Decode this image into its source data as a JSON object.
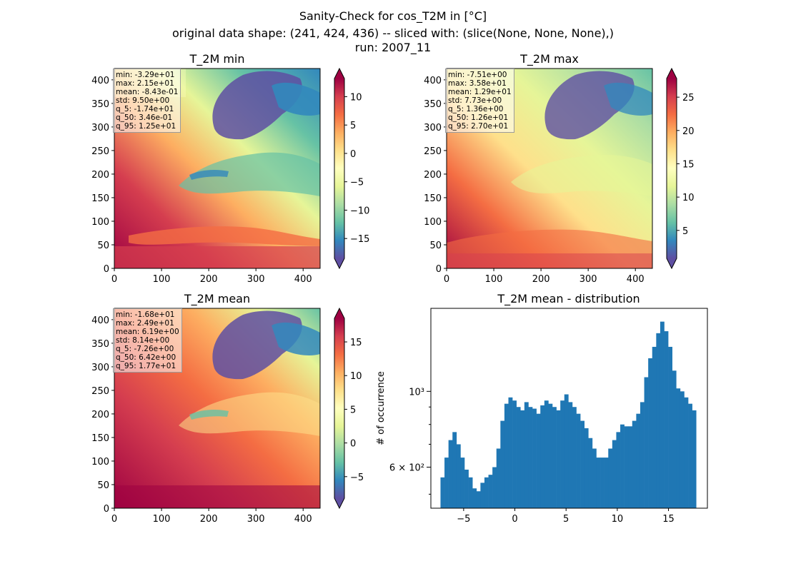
{
  "figure": {
    "title_lines": [
      "Sanity-Check for cos_T2M in [°C]",
      "original data shape: (241, 424, 436) -- sliced with: (slice(None, None, None),)",
      "run: 2007_11"
    ]
  },
  "panels": [
    {
      "id": "min",
      "title": "T_2M min",
      "stats": [
        "min: -3.29e+01",
        "max: 2.15e+01",
        "mean: -8.43e-01",
        "std: 9.50e+00",
        "q_5: -1.74e+01",
        "q_50: 3.46e-01",
        "q_95: 1.25e+01"
      ],
      "colorbar_ticks": [
        10,
        5,
        0,
        -5,
        -10,
        -15
      ],
      "tick_labels": [
        "10",
        "5",
        "0",
        "−5",
        "−10",
        "−15"
      ],
      "vmin": -18.5,
      "vmax": 13.2
    },
    {
      "id": "max",
      "title": "T_2M max",
      "stats": [
        "min: -7.51e+00",
        "max: 3.58e+01",
        "mean: 1.29e+01",
        "std: 7.73e+00",
        "q_5: 1.36e+00",
        "q_50: 1.26e+01",
        "q_95: 2.70e+01"
      ],
      "colorbar_ticks": [
        25,
        20,
        15,
        10,
        5
      ],
      "tick_labels": [
        "25",
        "20",
        "15",
        "10",
        "5"
      ],
      "vmin": 0.8,
      "vmax": 27.8
    },
    {
      "id": "mean",
      "title": "T_2M mean",
      "stats": [
        "min: -1.68e+01",
        "max: 2.49e+01",
        "mean: 6.19e+00",
        "std: 8.14e+00",
        "q_5: -7.26e+00",
        "q_50: 6.42e+00",
        "q_95: 1.77e+01"
      ],
      "colorbar_ticks": [
        15,
        10,
        5,
        0,
        -5
      ],
      "tick_labels": [
        "15",
        "10",
        "5",
        "0",
        "−5"
      ],
      "vmin": -8.2,
      "vmax": 18.5
    }
  ],
  "map_axes": {
    "x_ticks": [
      0,
      100,
      200,
      300,
      400
    ],
    "x_labels": [
      "0",
      "100",
      "200",
      "300",
      "400"
    ],
    "y_ticks": [
      0,
      50,
      100,
      150,
      200,
      250,
      300,
      350,
      400
    ],
    "y_labels": [
      "0",
      "50",
      "100",
      "150",
      "200",
      "250",
      "300",
      "350",
      "400"
    ],
    "xlim": [
      0,
      436
    ],
    "ylim": [
      0,
      424
    ]
  },
  "chart_data": {
    "type": "bar",
    "title": "T_2M mean - distribution",
    "xlabel": "",
    "ylabel": "# of occurrence",
    "y_scale": "log",
    "xlim": [
      -8.2,
      18.8
    ],
    "ylim": [
      455,
      1750
    ],
    "x_ticks": [
      -5,
      0,
      5,
      10,
      15
    ],
    "x_tick_labels": [
      "−5",
      "0",
      "5",
      "10",
      "15"
    ],
    "y_tick_values": [
      600,
      1000
    ],
    "y_tick_labels": [
      "6 × 10²",
      "10³"
    ],
    "color": "#1f77b4",
    "bins_start": -7.26,
    "bins_end": 17.7,
    "x": [
      -7.1,
      -6.5,
      -6.0,
      -5.6,
      -5.3,
      -5.0,
      -4.6,
      -4.3,
      -4.0,
      -3.7,
      -3.4,
      -3.1,
      -2.8,
      -2.4,
      -2.0,
      -1.6,
      -1.2,
      -0.8,
      -0.4,
      0.0,
      0.4,
      0.8,
      1.2,
      1.6,
      2.0,
      2.4,
      2.8,
      3.2,
      3.6,
      4.0,
      4.4,
      4.8,
      5.2,
      5.6,
      6.0,
      6.4,
      6.8,
      7.2,
      7.6,
      8.0,
      8.4,
      8.8,
      9.2,
      9.6,
      10.0,
      10.4,
      10.8,
      11.2,
      11.6,
      12.0,
      12.4,
      12.8,
      13.2,
      13.6,
      14.0,
      14.4,
      14.8,
      15.2,
      15.6,
      16.0,
      16.4,
      16.8,
      17.2,
      17.6
    ],
    "values": [
      560,
      640,
      720,
      760,
      700,
      640,
      590,
      560,
      520,
      510,
      540,
      560,
      570,
      600,
      680,
      820,
      920,
      960,
      940,
      900,
      880,
      930,
      900,
      890,
      860,
      910,
      940,
      920,
      900,
      880,
      940,
      980,
      930,
      900,
      860,
      820,
      780,
      730,
      680,
      640,
      640,
      640,
      680,
      720,
      760,
      800,
      790,
      790,
      820,
      860,
      930,
      1100,
      1250,
      1350,
      1480,
      1600,
      1500,
      1350,
      1150,
      1020,
      1000,
      960,
      920,
      880
    ]
  }
}
